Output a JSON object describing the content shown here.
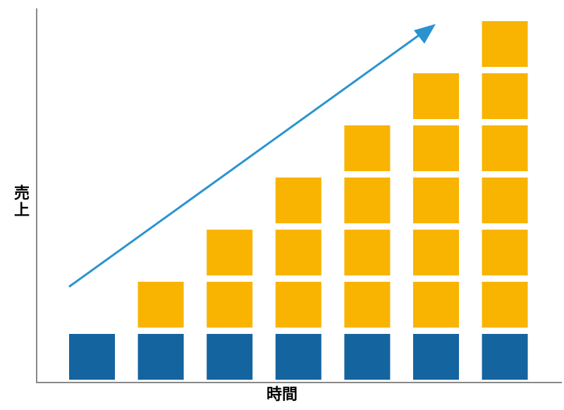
{
  "chart_data": {
    "type": "bar",
    "stacked": true,
    "categories": [
      "",
      "",
      "",
      "",
      "",
      "",
      ""
    ],
    "series": [
      {
        "values": [
          1,
          1,
          1,
          1,
          1,
          1,
          1
        ],
        "color": "#1464a0"
      },
      {
        "values": [
          0,
          1,
          2,
          3,
          4,
          5,
          6
        ],
        "color": "#f8b400"
      }
    ],
    "xlabel": "時間",
    "ylabel": "売上",
    "ylim": [
      0,
      7
    ],
    "grid": false,
    "trend_arrow": {
      "color": "#2a93cf",
      "direction": "up-right"
    },
    "axis_color": "#888888"
  }
}
